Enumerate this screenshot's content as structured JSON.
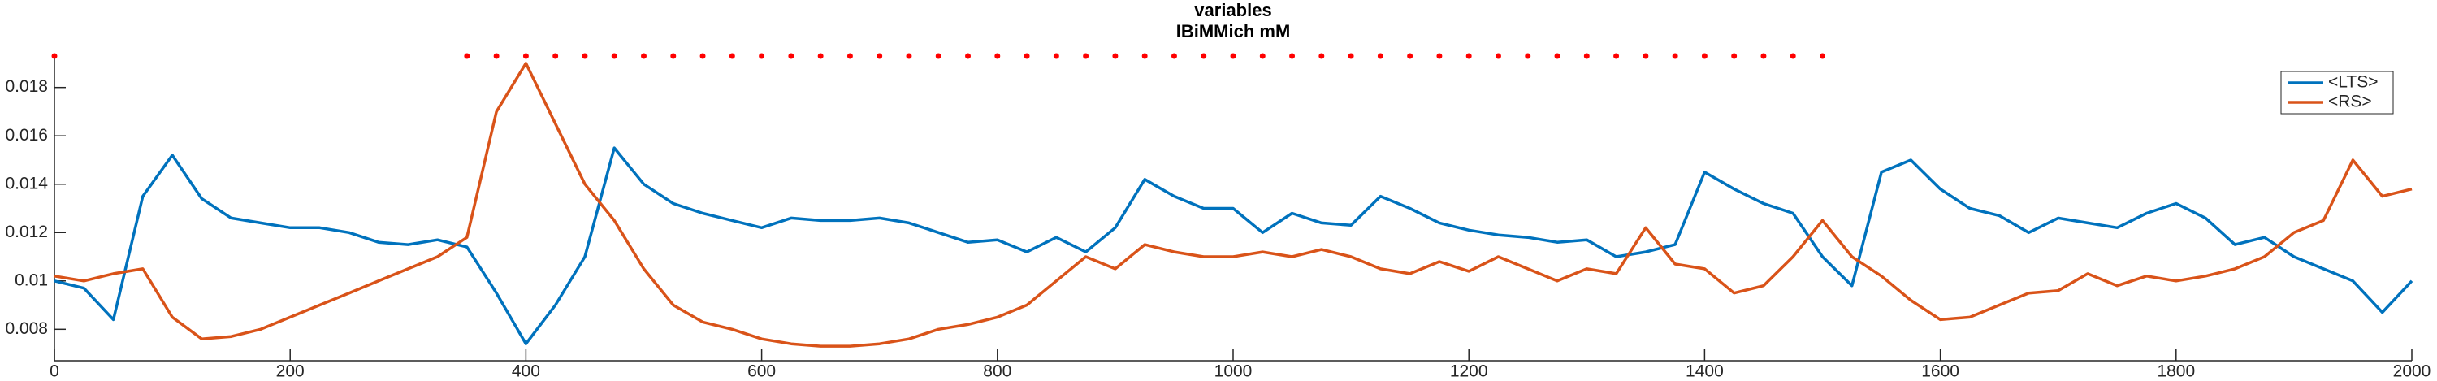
{
  "chart_data": {
    "type": "line",
    "title": "variables",
    "subtitle": "IBiMMich mM",
    "x": [
      0,
      25,
      50,
      75,
      100,
      125,
      150,
      175,
      200,
      225,
      250,
      275,
      300,
      325,
      350,
      375,
      400,
      425,
      450,
      475,
      500,
      525,
      550,
      575,
      600,
      625,
      650,
      675,
      700,
      725,
      750,
      775,
      800,
      825,
      850,
      875,
      900,
      925,
      950,
      975,
      1000,
      1025,
      1050,
      1075,
      1100,
      1125,
      1150,
      1175,
      1200,
      1225,
      1250,
      1275,
      1300,
      1325,
      1350,
      1375,
      1400,
      1425,
      1450,
      1475,
      1500,
      1525,
      1550,
      1575,
      1600,
      1625,
      1650,
      1675,
      1700,
      1725,
      1750,
      1775,
      1800,
      1825,
      1850,
      1875,
      1900,
      1925,
      1950,
      1975,
      2000
    ],
    "series": [
      {
        "name": "<LTS>",
        "color": "#0072BD",
        "values": [
          0.01,
          0.0097,
          0.0084,
          0.0135,
          0.0152,
          0.0134,
          0.0126,
          0.0124,
          0.0122,
          0.0122,
          0.012,
          0.0116,
          0.0115,
          0.0117,
          0.0114,
          0.0095,
          0.0074,
          0.009,
          0.011,
          0.0155,
          0.014,
          0.0132,
          0.0128,
          0.0125,
          0.0122,
          0.0126,
          0.0125,
          0.0125,
          0.0126,
          0.0124,
          0.012,
          0.0116,
          0.0117,
          0.0112,
          0.0118,
          0.0112,
          0.0122,
          0.0142,
          0.0135,
          0.013,
          0.013,
          0.012,
          0.0128,
          0.0124,
          0.0123,
          0.0135,
          0.013,
          0.0124,
          0.0121,
          0.0119,
          0.0118,
          0.0116,
          0.0117,
          0.011,
          0.0112,
          0.0115,
          0.0145,
          0.0138,
          0.0132,
          0.0128,
          0.011,
          0.0098,
          0.0145,
          0.015,
          0.0138,
          0.013,
          0.0127,
          0.012,
          0.0126,
          0.0124,
          0.0122,
          0.0128,
          0.0132,
          0.0126,
          0.0115,
          0.0118,
          0.011,
          0.0105,
          0.01,
          0.0087,
          0.01
        ]
      },
      {
        "name": "<RS>",
        "color": "#D95319",
        "values": [
          0.0102,
          0.01,
          0.0103,
          0.0105,
          0.0085,
          0.0076,
          0.0077,
          0.008,
          0.0085,
          0.009,
          0.0095,
          0.01,
          0.0105,
          0.011,
          0.0118,
          0.017,
          0.019,
          0.0165,
          0.014,
          0.0125,
          0.0105,
          0.009,
          0.0083,
          0.008,
          0.0076,
          0.0074,
          0.0073,
          0.0073,
          0.0074,
          0.0076,
          0.008,
          0.0082,
          0.0085,
          0.009,
          0.01,
          0.011,
          0.0105,
          0.0115,
          0.0112,
          0.011,
          0.011,
          0.0112,
          0.011,
          0.0113,
          0.011,
          0.0105,
          0.0103,
          0.0108,
          0.0104,
          0.011,
          0.0105,
          0.01,
          0.0105,
          0.0103,
          0.0122,
          0.0107,
          0.0105,
          0.0095,
          0.0098,
          0.011,
          0.0125,
          0.011,
          0.0102,
          0.0092,
          0.0084,
          0.0085,
          0.009,
          0.0095,
          0.0096,
          0.0103,
          0.0098,
          0.0102,
          0.01,
          0.0102,
          0.0105,
          0.011,
          0.012,
          0.0125,
          0.015,
          0.0135,
          0.0138
        ]
      }
    ],
    "markers": {
      "color": "#ff0000",
      "y": 0.0193,
      "x": [
        0,
        350,
        375,
        400,
        425,
        450,
        475,
        500,
        525,
        550,
        575,
        600,
        625,
        650,
        675,
        700,
        725,
        750,
        775,
        800,
        825,
        850,
        875,
        900,
        925,
        950,
        975,
        1000,
        1025,
        1050,
        1075,
        1100,
        1125,
        1150,
        1175,
        1200,
        1225,
        1250,
        1275,
        1300,
        1325,
        1350,
        1375,
        1400,
        1425,
        1450,
        1475,
        1500
      ]
    },
    "xlim": [
      0,
      2000
    ],
    "xticks": [
      0,
      200,
      400,
      600,
      800,
      1000,
      1200,
      1400,
      1600,
      1800,
      2000
    ],
    "ylim": [
      0.0067,
      0.0193
    ],
    "yticks": [
      0.008,
      0.01,
      0.012,
      0.014,
      0.016,
      0.018
    ],
    "grid": false,
    "legend": "top-right"
  }
}
